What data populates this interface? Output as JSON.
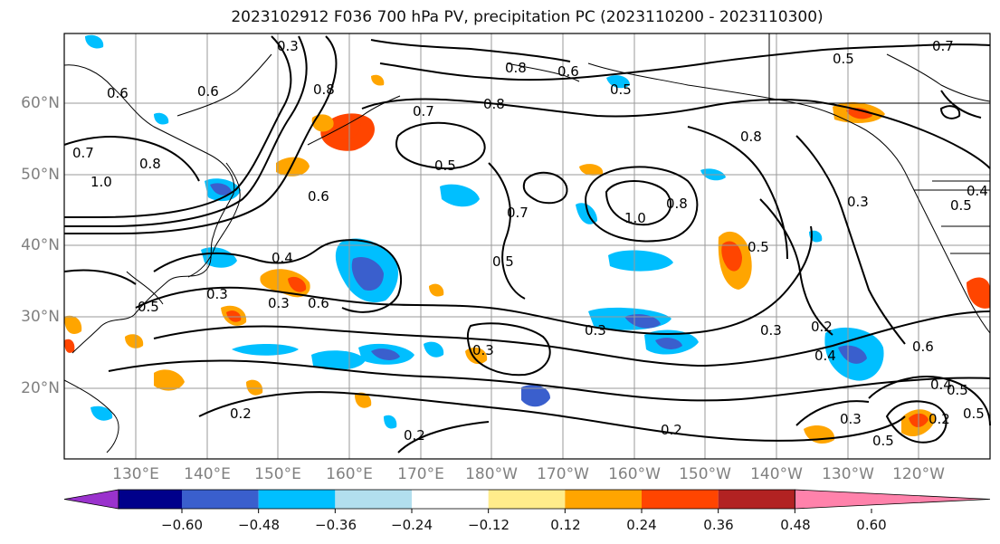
{
  "title": "2023102912 F036 700 hPa PV, precipitation PC (2023110200 - 2023110300)",
  "lat_labels": [
    "60°N",
    "50°N",
    "40°N",
    "30°N",
    "20°N"
  ],
  "lon_labels": [
    "130°E",
    "140°E",
    "150°E",
    "160°E",
    "170°E",
    "180°W",
    "170°W",
    "160°W",
    "150°W",
    "140°W",
    "130°W",
    "120°W"
  ],
  "colorbar": {
    "ticks": [
      "−0.60",
      "−0.48",
      "−0.36",
      "−0.24",
      "−0.12",
      "0.12",
      "0.24",
      "0.36",
      "0.48",
      "0.60"
    ],
    "colors": [
      "#9a32cd",
      "#00008b",
      "#3a5fcd",
      "#00bfff",
      "#b2dfee",
      "#ffffff",
      "#ffec8b",
      "#ffa500",
      "#ff4500",
      "#b22222",
      "#ff82ab"
    ]
  },
  "contour_labels": [
    "0.3",
    "0.8",
    "0.6",
    "0.5",
    "0.7",
    "0.8",
    "0.6",
    "0.8",
    "0.6",
    "0.7",
    "0.5",
    "0.8",
    "0.7",
    "0.8",
    "1.0",
    "0.7",
    "0.5",
    "0.6",
    "1.0",
    "0.8",
    "0.3",
    "0.5",
    "0.4",
    "0.4",
    "0.3",
    "0.5",
    "0.5",
    "0.6",
    "0.5",
    "0.3",
    "0.3",
    "0.2",
    "0.6",
    "0.4",
    "0.3",
    "0.2",
    "0.2",
    "0.2",
    "0.3",
    "0.5",
    "0.2",
    "0.3",
    "0.4",
    "0.5",
    "0.5"
  ]
}
